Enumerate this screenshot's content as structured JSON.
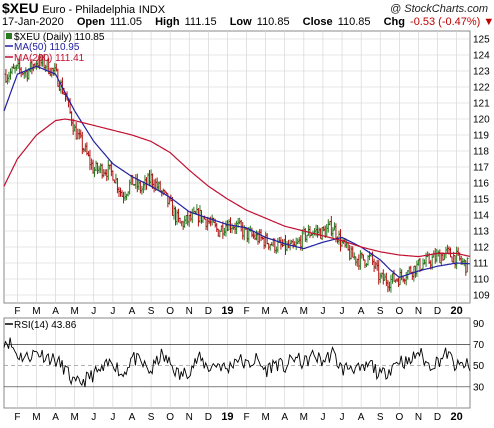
{
  "header": {
    "symbol": "$XEU",
    "name": "Euro - Philadelphia",
    "exchange": "INDX",
    "credit": "@ StockCharts.com",
    "date": "17-Jan-2020",
    "open_label": "Open",
    "open": "111.05",
    "high_label": "High",
    "high": "111.15",
    "low_label": "Low",
    "low": "110.85",
    "close_label": "Close",
    "close": "110.85",
    "chg_label": "Chg",
    "chg": "-0.53 (-0.47%)",
    "chg_marker": "▼"
  },
  "legend": {
    "price": "$XEU (Daily) 110.85",
    "ma50": "MA(50) 110.95",
    "ma200": "MA(200) 111.41",
    "rsi": "RSI(14) 43.86"
  },
  "colors": {
    "up": "#2a7a22",
    "down": "#b01010",
    "ma50": "#2020a0",
    "ma200": "#c01030",
    "grid": "#d0d0d0",
    "rsi": "#000000"
  },
  "chart_data": [
    {
      "type": "line",
      "title": "$XEU Euro - Philadelphia",
      "y_ticks": [
        109,
        110,
        111,
        112,
        113,
        114,
        115,
        116,
        117,
        118,
        119,
        120,
        121,
        122,
        123,
        124,
        125
      ],
      "ylim": [
        108.5,
        125.5
      ],
      "x_ticks": [
        "F",
        "M",
        "A",
        "M",
        "J",
        "J",
        "A",
        "S",
        "O",
        "N",
        "D",
        "19",
        "F",
        "M",
        "A",
        "M",
        "J",
        "J",
        "A",
        "S",
        "O",
        "N",
        "D",
        "20"
      ],
      "x_tick_months": [
        1,
        2,
        3,
        4,
        5,
        6,
        7,
        8,
        9,
        10,
        11,
        12,
        13,
        14,
        15,
        16,
        17,
        18,
        19,
        20,
        21,
        22,
        23,
        24
      ],
      "xlim": [
        0.3,
        24.7
      ],
      "series": [
        {
          "name": "$XEU (Daily)",
          "x": [
            0.5,
            1,
            1.5,
            2,
            2.5,
            3,
            3.5,
            4,
            4.5,
            5,
            5.5,
            6,
            6.5,
            7,
            7.5,
            8,
            8.5,
            9,
            9.5,
            10,
            10.5,
            11,
            11.5,
            12,
            12.5,
            13,
            13.5,
            14,
            14.5,
            15,
            15.5,
            16,
            16.5,
            17,
            17.5,
            18,
            18.5,
            19,
            19.5,
            20,
            20.5,
            21,
            21.5,
            22,
            22.5,
            23,
            23.5,
            24,
            24.5
          ],
          "values": [
            122.8,
            123.1,
            122.9,
            123.6,
            123.4,
            122.8,
            121.5,
            119.3,
            118.1,
            116.8,
            116.9,
            116.6,
            115.2,
            116.1,
            115.6,
            116.3,
            115.5,
            114.6,
            113.4,
            113.7,
            114.0,
            113.6,
            113.0,
            113.5,
            113.3,
            112.8,
            112.6,
            112.4,
            112.1,
            112.0,
            111.9,
            112.7,
            113.0,
            112.9,
            113.3,
            112.2,
            111.4,
            111.2,
            111.3,
            110.0,
            109.9,
            110.1,
            110.5,
            110.8,
            111.1,
            111.4,
            111.6,
            111.3,
            110.85
          ]
        },
        {
          "name": "MA(50)",
          "x": [
            0.3,
            1,
            2,
            3,
            4,
            5,
            6,
            7,
            8,
            9,
            10,
            11,
            12,
            13,
            14,
            15,
            16,
            17,
            18,
            19,
            20,
            20.5,
            21,
            21.5,
            22,
            23,
            24,
            24.7
          ],
          "values": [
            120.5,
            122.8,
            123.3,
            122.8,
            120.5,
            118.6,
            117.2,
            116.4,
            115.8,
            115.1,
            114.2,
            113.8,
            113.4,
            113.2,
            112.6,
            112.2,
            111.9,
            112.3,
            112.6,
            112.0,
            111.2,
            110.6,
            110.1,
            110.3,
            110.5,
            110.8,
            111.0,
            110.95
          ]
        },
        {
          "name": "MA(200)",
          "x": [
            0.3,
            1,
            2,
            3,
            3.5,
            4,
            5,
            6,
            7,
            8,
            9,
            10,
            11,
            12,
            13,
            14,
            15,
            16,
            17,
            18,
            19,
            20,
            21,
            22,
            23,
            24,
            24.7
          ],
          "values": [
            115.8,
            117.5,
            119.0,
            119.9,
            120.0,
            119.9,
            119.6,
            119.3,
            119.0,
            118.6,
            117.9,
            116.8,
            115.8,
            115.0,
            114.3,
            113.8,
            113.3,
            113.0,
            112.7,
            112.4,
            112.0,
            111.7,
            111.5,
            111.4,
            111.6,
            111.6,
            111.41
          ]
        }
      ]
    },
    {
      "type": "line",
      "title": "RSI(14)",
      "y_ticks": [
        30,
        50,
        70,
        90
      ],
      "ylim": [
        10,
        95
      ],
      "reference_lines": [
        30,
        50,
        70
      ],
      "x_ticks": [
        "F",
        "M",
        "A",
        "M",
        "J",
        "J",
        "A",
        "S",
        "O",
        "N",
        "D",
        "19",
        "F",
        "M",
        "A",
        "M",
        "J",
        "J",
        "A",
        "S",
        "O",
        "N",
        "D",
        "20"
      ],
      "x_tick_months": [
        1,
        2,
        3,
        4,
        5,
        6,
        7,
        8,
        9,
        10,
        11,
        12,
        13,
        14,
        15,
        16,
        17,
        18,
        19,
        20,
        21,
        22,
        23,
        24
      ],
      "xlim": [
        0.3,
        24.7
      ],
      "series": [
        {
          "name": "RSI(14)",
          "x": [
            0.3,
            0.6,
            1,
            1.5,
            2,
            2.5,
            3,
            3.5,
            4,
            4.5,
            5,
            5.5,
            6,
            6.5,
            7,
            7.5,
            8,
            8.5,
            9,
            9.5,
            10,
            10.5,
            11,
            11.5,
            12,
            12.5,
            13,
            13.5,
            14,
            14.5,
            15,
            15.5,
            16,
            16.5,
            17,
            17.5,
            18,
            18.5,
            19,
            19.5,
            20,
            20.5,
            21,
            21.5,
            22,
            22.5,
            23,
            23.5,
            24,
            24.5,
            24.7
          ],
          "values": [
            74,
            72,
            60,
            58,
            63,
            59,
            55,
            47,
            32,
            36,
            42,
            46,
            55,
            40,
            58,
            52,
            44,
            60,
            52,
            40,
            46,
            57,
            48,
            52,
            46,
            58,
            50,
            56,
            45,
            53,
            48,
            58,
            52,
            60,
            54,
            62,
            46,
            50,
            44,
            52,
            40,
            47,
            56,
            52,
            64,
            50,
            54,
            62,
            48,
            52,
            43.86
          ]
        }
      ]
    }
  ]
}
